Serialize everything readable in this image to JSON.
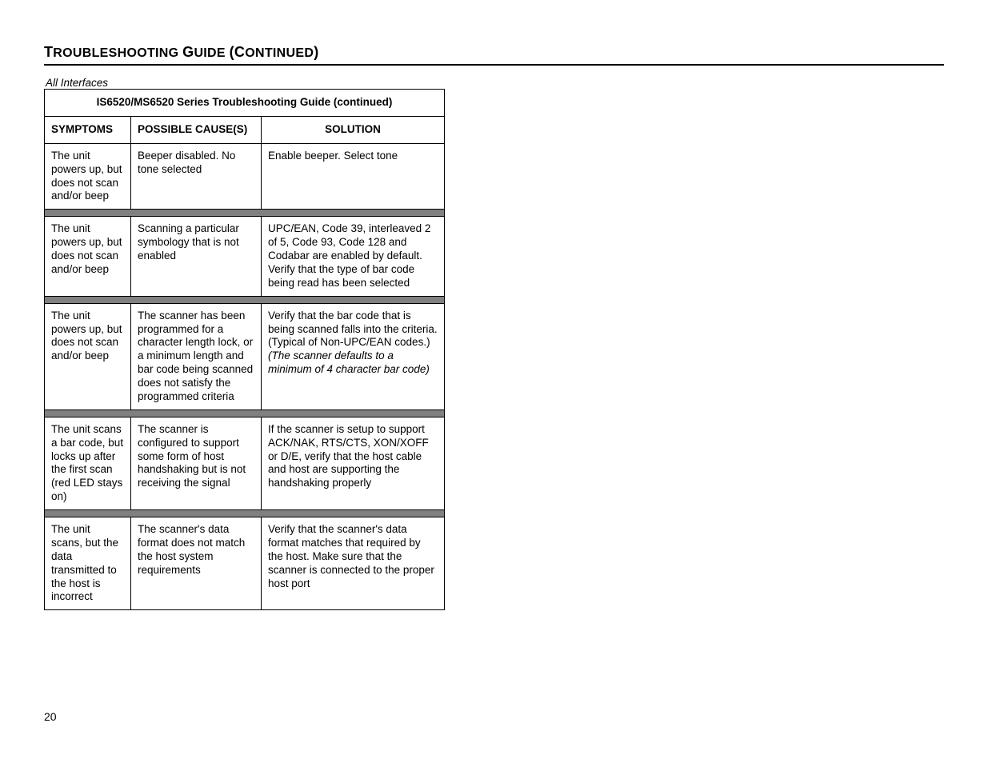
{
  "heading": "TROUBLESHOOTING GUIDE (CONTINUED)",
  "subheading": "All Interfaces",
  "table": {
    "title": "IS6520/MS6520 Series Troubleshooting Guide (continued)",
    "columns": {
      "symptoms": "SYMPTOMS",
      "cause": "POSSIBLE CAUSE(S)",
      "solution": "SOLUTION"
    },
    "rows": [
      {
        "symptom": "The unit powers up, but does not scan and/or beep",
        "cause": "Beeper disabled. No tone selected",
        "solution": "Enable beeper. Select tone"
      },
      {
        "symptom": "The unit powers up, but does not scan and/or beep",
        "cause": "Scanning a particular symbology that is not enabled",
        "solution": "UPC/EAN, Code 39, interleaved 2 of 5, Code 93, Code 128 and Codabar are enabled by default. Verify that the type of bar code being read has been selected"
      },
      {
        "symptom": "The unit powers up, but does not scan and/or beep",
        "cause": "The scanner has been programmed for a character length lock, or a minimum length and bar code being scanned does not satisfy the programmed criteria",
        "solution_pre": "Verify that the bar code that is being scanned falls into the criteria. (Typical of Non-UPC/EAN codes.) ",
        "solution_italic": "(The scanner defaults to a minimum of 4 character bar code)"
      },
      {
        "symptom": "The unit scans a bar code, but locks up after the first scan (red LED stays on)",
        "cause": "The scanner is configured to support some form of host handshaking but is not receiving the signal",
        "solution": "If the scanner is setup to support ACK/NAK, RTS/CTS, XON/XOFF or D/E, verify that the host cable and host are supporting the handshaking properly"
      },
      {
        "symptom": "The unit scans, but the data transmitted to the host is incorrect",
        "cause": "The scanner's data format does not match the host system requirements",
        "solution": "Verify that the scanner's data format matches that required by the host. Make sure that the scanner is connected to the proper host port"
      }
    ]
  },
  "page_number": "20"
}
